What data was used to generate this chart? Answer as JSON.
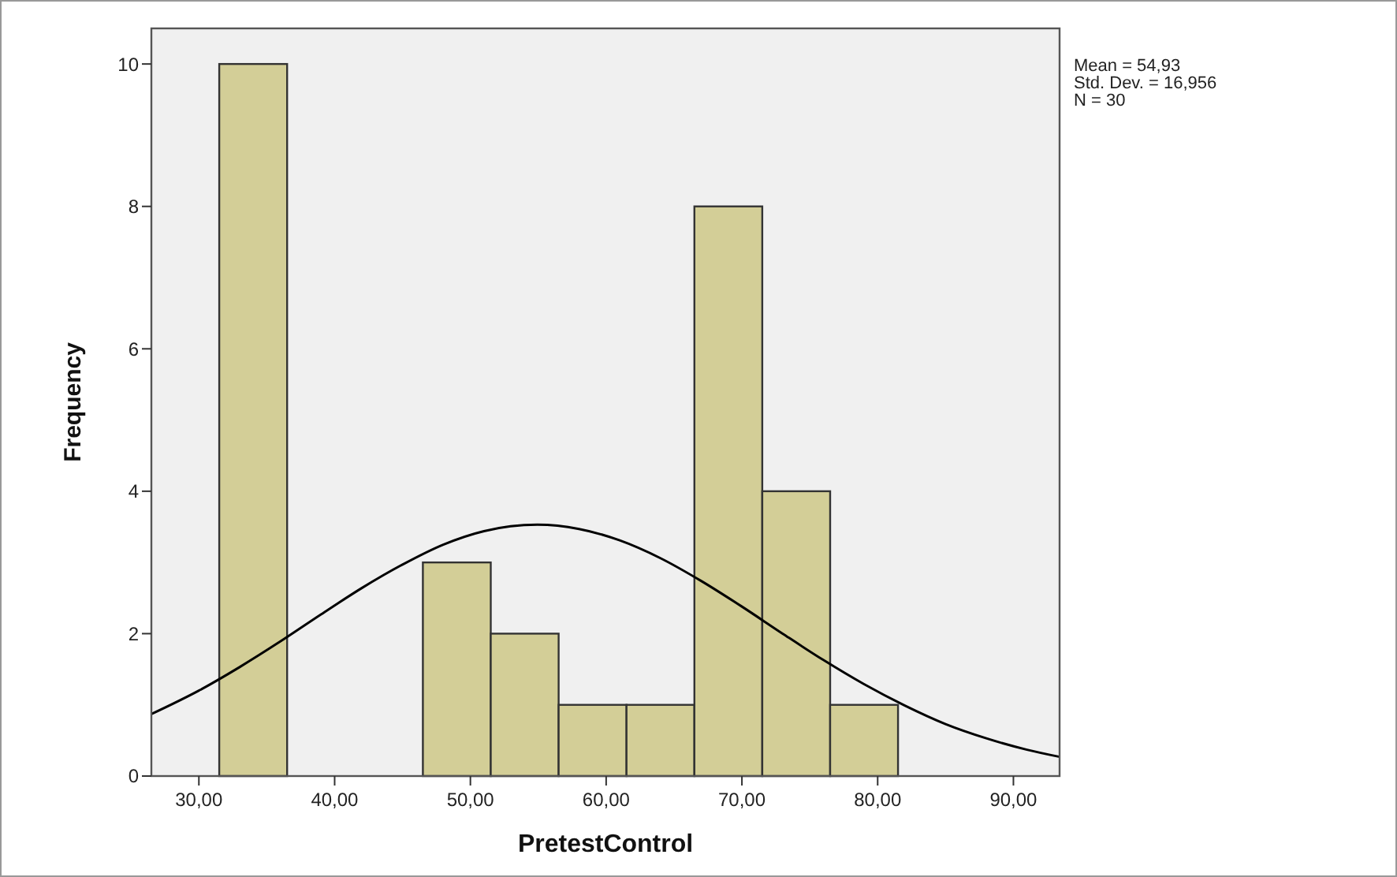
{
  "chart_data": {
    "type": "histogram",
    "xlabel": "PretestControl",
    "ylabel": "Frequency",
    "bins": [
      31.5,
      36.5,
      41.5,
      46.5,
      51.5,
      56.5,
      61.5,
      66.5,
      71.5,
      76.5,
      81.5
    ],
    "values": [
      10,
      0,
      0,
      3,
      2,
      1,
      1,
      8,
      4,
      1
    ],
    "color": "#d3ce97",
    "series": [
      {
        "type": "line",
        "color": "#000000",
        "x": [
          26.5,
          30,
          33,
          36,
          39,
          42,
          45,
          48,
          51,
          54.93,
          58,
          61,
          64,
          67,
          70,
          73,
          76,
          79,
          82,
          85,
          88,
          91,
          93.4
        ],
        "values": [
          0.87,
          1.2,
          1.53,
          1.89,
          2.27,
          2.64,
          2.97,
          3.25,
          3.44,
          3.53,
          3.47,
          3.31,
          3.06,
          2.74,
          2.38,
          2.0,
          1.63,
          1.29,
          0.99,
          0.73,
          0.53,
          0.37,
          0.27
        ]
      }
    ],
    "xlim": [
      26.5,
      93.4
    ],
    "ylim": [
      0,
      10.5
    ],
    "xticks": [
      {
        "value": 30,
        "label": "30,00"
      },
      {
        "value": 40,
        "label": "40,00"
      },
      {
        "value": 50,
        "label": "50,00"
      },
      {
        "value": 60,
        "label": "60,00"
      },
      {
        "value": 70,
        "label": "70,00"
      },
      {
        "value": 80,
        "label": "80,00"
      },
      {
        "value": 90,
        "label": "90,00"
      }
    ],
    "yticks": [
      0,
      2,
      4,
      6,
      8,
      10
    ],
    "grid": false,
    "marker": "none",
    "line_style": "solid",
    "annotations": [
      "Mean = 54,93",
      "Std. Dev. = 16,956",
      "N = 30"
    ]
  }
}
